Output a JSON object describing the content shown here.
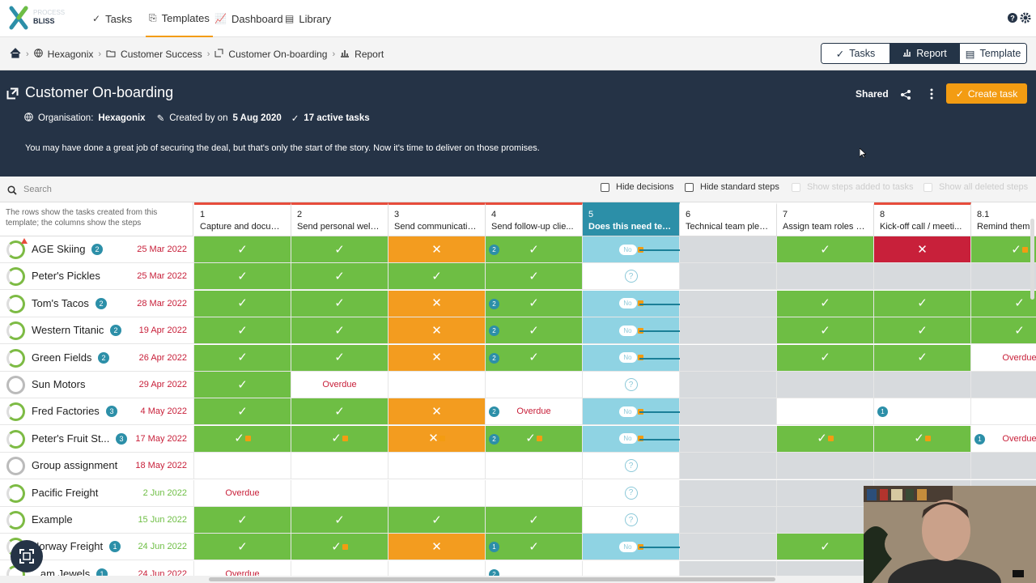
{
  "brand": {
    "line1": "PROCESS",
    "line2": "BLISS"
  },
  "nav": {
    "items": [
      {
        "label": "Tasks",
        "icon": "check-icon"
      },
      {
        "label": "Templates",
        "icon": "template-icon"
      },
      {
        "label": "Dashboard",
        "icon": "chart-icon"
      },
      {
        "label": "Library",
        "icon": "document-icon"
      }
    ],
    "active": "Templates"
  },
  "breadcrumb": {
    "items": [
      "Hexagonix",
      "Customer Success",
      "Customer On-boarding",
      "Report"
    ]
  },
  "view_switch": [
    "Tasks",
    "Report",
    "Template"
  ],
  "view_active": "Report",
  "header": {
    "title": "Customer On-boarding",
    "org_label": "Organisation:",
    "org": "Hexagonix",
    "created_label": "Created by on",
    "created_date": "5 Aug 2020",
    "active_tasks": "17 active tasks",
    "description": "You may have done a great job of securing the deal, but that's only the start of the story. Now it's time to deliver on those promises.",
    "shared": "Shared",
    "create_button": "Create task"
  },
  "filters": {
    "search_placeholder": "Search",
    "hide_decisions": "Hide decisions",
    "hide_standard": "Hide standard steps",
    "show_added": "Show steps added to tasks",
    "show_deleted": "Show all deleted steps"
  },
  "grid": {
    "intro": "The rows show the tasks created from this template; the columns show the steps",
    "columns": [
      {
        "num": "1",
        "title": "Capture and docum..."
      },
      {
        "num": "2",
        "title": "Send personal welc..."
      },
      {
        "num": "3",
        "title": "Send communicatio..."
      },
      {
        "num": "4",
        "title": "Send follow-up clie..."
      },
      {
        "num": "5",
        "title": "Does this need tech..."
      },
      {
        "num": "6",
        "title": "Technical team plea..."
      },
      {
        "num": "7",
        "title": "Assign team roles a..."
      },
      {
        "num": "8",
        "title": "Kick-off call / meeti..."
      },
      {
        "num": "8.1",
        "title": "Remind them"
      }
    ],
    "no_label": "No",
    "overdue_label": "Overdue",
    "rows": [
      {
        "name": "AGE Skiing",
        "badge": "2",
        "date": "25 Mar 2022",
        "date_color": "#c8203a"
      },
      {
        "name": "Peter's Pickles",
        "badge": "",
        "date": "25 Mar 2022",
        "date_color": "#c8203a"
      },
      {
        "name": "Tom's Tacos",
        "badge": "2",
        "date": "28 Mar 2022",
        "date_color": "#c8203a"
      },
      {
        "name": "Western Titanic",
        "badge": "2",
        "date": "19 Apr 2022",
        "date_color": "#c8203a"
      },
      {
        "name": "Green Fields",
        "badge": "2",
        "date": "26 Apr 2022",
        "date_color": "#c8203a"
      },
      {
        "name": "Sun Motors",
        "badge": "",
        "date": "29 Apr 2022",
        "date_color": "#c8203a"
      },
      {
        "name": "Fred Factories",
        "badge": "3",
        "date": "4 May 2022",
        "date_color": "#c8203a"
      },
      {
        "name": "Peter's Fruit St...",
        "badge": "3",
        "date": "17 May 2022",
        "date_color": "#c8203a"
      },
      {
        "name": "Group assignment",
        "badge": "",
        "date": "18 May 2022",
        "date_color": "#c8203a"
      },
      {
        "name": "Pacific Freight",
        "badge": "",
        "date": "2 Jun 2022",
        "date_color": "#6ebe44"
      },
      {
        "name": "Example",
        "badge": "",
        "date": "15 Jun 2022",
        "date_color": "#6ebe44"
      },
      {
        "name": "Norway Freight",
        "badge": "1",
        "date": "24 Jun 2022",
        "date_color": "#6ebe44"
      },
      {
        "name": "...am Jewels",
        "badge": "1",
        "date": "24 Jun 2022",
        "date_color": "#c8203a"
      }
    ]
  }
}
